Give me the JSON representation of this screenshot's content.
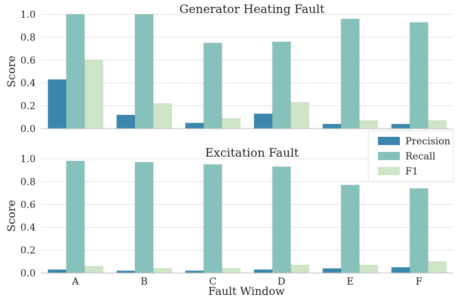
{
  "chart_data": [
    {
      "type": "bar",
      "title": "Generator Heating Fault",
      "ylabel": "Score",
      "xlabel": "",
      "ylim": [
        0,
        1.0
      ],
      "yticks": [
        "0.0",
        "0.2",
        "0.4",
        "0.6",
        "0.8",
        "1.0"
      ],
      "categories": [
        "A",
        "B",
        "C",
        "D",
        "E",
        "F"
      ],
      "show_xticklabels": false,
      "grid": "horizontal",
      "series": [
        {
          "name": "Precision",
          "values": [
            0.43,
            0.12,
            0.05,
            0.13,
            0.04,
            0.04
          ]
        },
        {
          "name": "Recall",
          "values": [
            1.0,
            1.0,
            0.75,
            0.76,
            0.96,
            0.93
          ]
        },
        {
          "name": "F1",
          "values": [
            0.6,
            0.22,
            0.09,
            0.23,
            0.07,
            0.07
          ]
        }
      ]
    },
    {
      "type": "bar",
      "title": "Excitation Fault",
      "ylabel": "Score",
      "xlabel": "Fault Window",
      "ylim": [
        0,
        1.0
      ],
      "yticks": [
        "0.0",
        "0.2",
        "0.4",
        "0.6",
        "0.8",
        "1.0"
      ],
      "categories": [
        "A",
        "B",
        "C",
        "D",
        "E",
        "F"
      ],
      "show_xticklabels": true,
      "grid": "horizontal",
      "series": [
        {
          "name": "Precision",
          "values": [
            0.03,
            0.02,
            0.02,
            0.03,
            0.04,
            0.05
          ]
        },
        {
          "name": "Recall",
          "values": [
            0.98,
            0.97,
            0.95,
            0.93,
            0.77,
            0.74
          ]
        },
        {
          "name": "F1",
          "values": [
            0.06,
            0.04,
            0.04,
            0.07,
            0.07,
            0.1
          ]
        }
      ]
    }
  ],
  "legend": {
    "placement": "right, between subplots",
    "entries": [
      {
        "label": "Precision",
        "color": "#3b86ad"
      },
      {
        "label": "Recall",
        "color": "#86c2bb"
      },
      {
        "label": "F1",
        "color": "#cfe5c8"
      }
    ]
  },
  "colors": {
    "precision": "#3b86ad",
    "recall": "#86c2bb",
    "f1": "#cfe5c8",
    "grid": "#e3e3e3"
  }
}
